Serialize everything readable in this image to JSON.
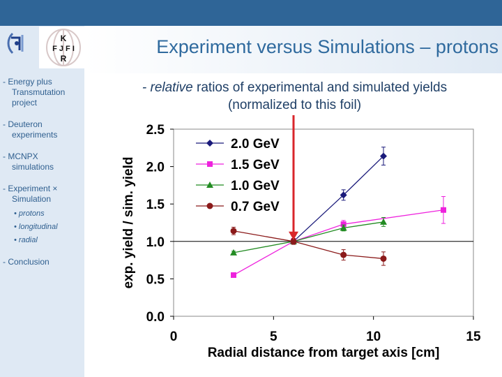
{
  "slide": {
    "title": "Experiment versus Simulations – protons",
    "logo_text": "KFJFIR",
    "sidebar": [
      {
        "line1": "- Energy plus",
        "line2": "Transmutation",
        "line3": "project"
      },
      {
        "line1": "- Deuteron",
        "line2": "experiments"
      },
      {
        "line1": "- MCNPX",
        "line2": "simulations"
      },
      {
        "line1": "- Experiment × ",
        "line2": "Simulation"
      }
    ],
    "sidebar_sub": [
      "• protons",
      "• longitudinal",
      "• radial"
    ],
    "sidebar_last": "- Conclusion",
    "subtitle_italic": "- relative",
    "subtitle_rest": " ratios of experimental and simulated yields",
    "subtitle_line2": "(normalized to this foil)"
  },
  "colors": {
    "bar": "#2f6597",
    "panel": "#dfe9f4",
    "title": "#2f6a9e",
    "arrow": "#d9262b"
  },
  "chart_data": {
    "type": "line",
    "xlabel": "Radial distance from target axis [cm]",
    "ylabel": "exp. yield / sim. yield",
    "xlim": [
      0,
      15
    ],
    "ylim": [
      0.0,
      2.5
    ],
    "xticks": [
      "0",
      "5",
      "10",
      "15"
    ],
    "yticks": [
      "0.0",
      "0.5",
      "1.0",
      "1.5",
      "2.0",
      "2.5"
    ],
    "reference_line": 1.0,
    "highlight_x": 6.0,
    "legend_position": "top-left",
    "series": [
      {
        "name": "2.0 GeV",
        "color": "#1a1a7a",
        "marker": "diamond",
        "x": [
          6.0,
          8.5,
          10.5
        ],
        "y": [
          1.0,
          1.62,
          2.14
        ],
        "err": [
          0.03,
          0.07,
          0.12
        ]
      },
      {
        "name": "1.5 GeV",
        "color": "#ee22dd",
        "marker": "square",
        "x": [
          3.0,
          6.0,
          8.5,
          13.5
        ],
        "y": [
          0.55,
          1.0,
          1.23,
          1.42
        ],
        "err": [
          0.02,
          0.03,
          0.05,
          0.18
        ]
      },
      {
        "name": "1.0 GeV",
        "color": "#228b22",
        "marker": "triangle",
        "x": [
          3.0,
          6.0,
          8.5,
          10.5
        ],
        "y": [
          0.85,
          1.0,
          1.18,
          1.26
        ],
        "err": [
          0.02,
          0.03,
          0.04,
          0.06
        ]
      },
      {
        "name": "0.7 GeV",
        "color": "#8b1a1a",
        "marker": "circle",
        "x": [
          3.0,
          6.0,
          8.5,
          10.5
        ],
        "y": [
          1.14,
          1.0,
          0.82,
          0.77
        ],
        "err": [
          0.05,
          0.04,
          0.07,
          0.09
        ]
      }
    ]
  }
}
